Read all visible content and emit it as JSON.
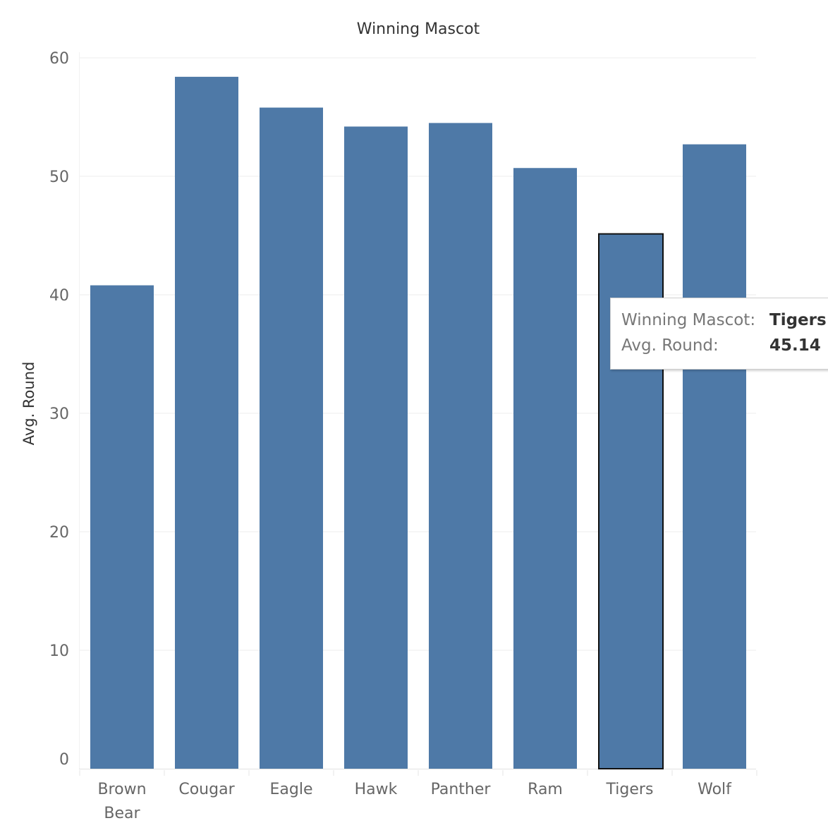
{
  "chart_data": {
    "type": "bar",
    "title": "Winning Mascot",
    "xlabel": "",
    "ylabel": "Avg. Round",
    "categories": [
      "Brown Bear",
      "Cougar",
      "Eagle",
      "Hawk",
      "Panther",
      "Ram",
      "Tigers",
      "Wolf"
    ],
    "category_lines": [
      [
        "Brown",
        "Bear"
      ],
      [
        "Cougar"
      ],
      [
        "Eagle"
      ],
      [
        "Hawk"
      ],
      [
        "Panther"
      ],
      [
        "Ram"
      ],
      [
        "Tigers"
      ],
      [
        "Wolf"
      ]
    ],
    "values": [
      40.8,
      58.4,
      55.8,
      54.2,
      54.5,
      50.7,
      45.14,
      52.7
    ],
    "ylim": [
      0,
      60
    ],
    "yticks": [
      0,
      10,
      20,
      30,
      40,
      50,
      60
    ],
    "grid": true,
    "bar_color": "#4e79a7",
    "highlighted": "Tigers"
  },
  "tooltip": {
    "mascot_key": "Winning Mascot:",
    "mascot_value": "Tigers",
    "round_key": "Avg. Round:",
    "round_value": "45.14"
  }
}
